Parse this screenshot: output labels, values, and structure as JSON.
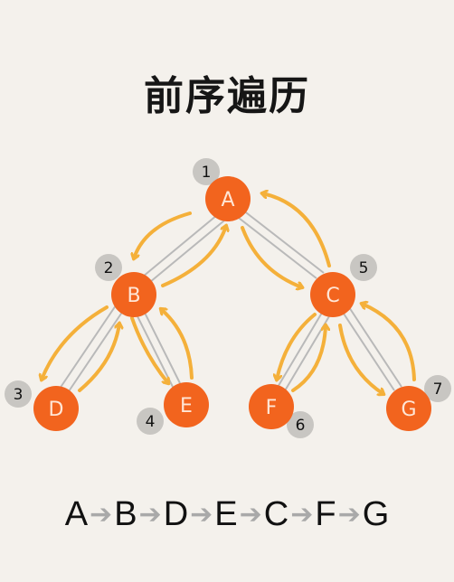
{
  "title": "前序遍历",
  "colors": {
    "node_fill": "#f2641e",
    "edge": "#b9b9b9",
    "traversal_arrow": "#f4b03a",
    "badge": "#c8c6c2",
    "background": "#f4f1ec"
  },
  "nodes": [
    {
      "id": "A",
      "label": "A",
      "order": "1"
    },
    {
      "id": "B",
      "label": "B",
      "order": "2"
    },
    {
      "id": "C",
      "label": "C",
      "order": "5"
    },
    {
      "id": "D",
      "label": "D",
      "order": "3"
    },
    {
      "id": "E",
      "label": "E",
      "order": "4"
    },
    {
      "id": "F",
      "label": "F",
      "order": "6"
    },
    {
      "id": "G",
      "label": "G",
      "order": "7"
    }
  ],
  "edges": [
    {
      "from": "A",
      "to": "B"
    },
    {
      "from": "A",
      "to": "C"
    },
    {
      "from": "B",
      "to": "D"
    },
    {
      "from": "B",
      "to": "E"
    },
    {
      "from": "C",
      "to": "F"
    },
    {
      "from": "C",
      "to": "G"
    }
  ],
  "sequence": [
    "A",
    "B",
    "D",
    "E",
    "C",
    "F",
    "G"
  ],
  "sequence_arrow_icon": "arrow-right-icon"
}
